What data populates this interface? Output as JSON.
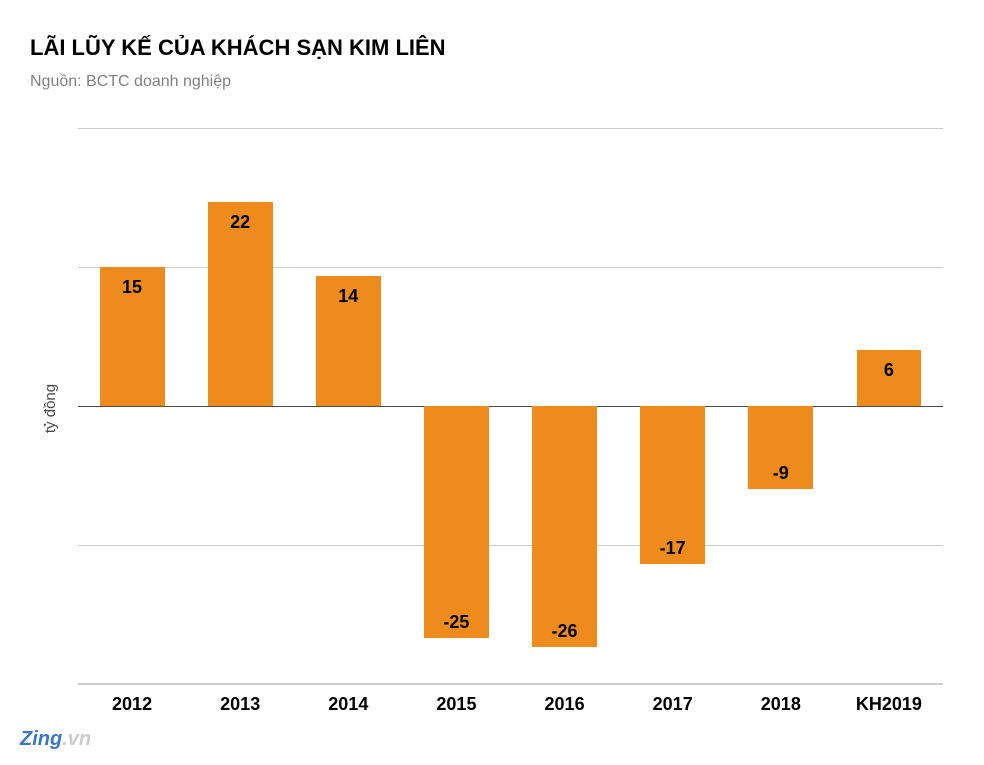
{
  "chart": {
    "type": "bar",
    "title": "LÃI LŨY KẾ CỦA KHÁCH SẠN KIM LIÊN",
    "subtitle": "Nguồn: BCTC doanh nghiệp",
    "ylabel": "tỷ đồng",
    "title_fontsize": 22,
    "title_color": "#000000",
    "subtitle_fontsize": 16,
    "subtitle_color": "#808080",
    "label_fontsize": 18,
    "bar_color": "#ed8b1c",
    "grid_color": "#cccccc",
    "zero_line_color": "#4a4a4a",
    "background_color": "#ffffff",
    "bar_width_ratio": 0.6,
    "ylim": [
      -30,
      30
    ],
    "grid_lines_at": [
      30,
      15,
      0,
      -15,
      -30
    ],
    "categories": [
      "2012",
      "2013",
      "2014",
      "2015",
      "2016",
      "2017",
      "2018",
      "KH2019"
    ],
    "values": [
      15,
      22,
      14,
      -25,
      -26,
      -17,
      -9,
      6
    ],
    "watermark": {
      "zing": "Zing",
      "vn": ".vn",
      "zing_color": "#3a77cc",
      "vn_color": "#cccccc"
    }
  }
}
